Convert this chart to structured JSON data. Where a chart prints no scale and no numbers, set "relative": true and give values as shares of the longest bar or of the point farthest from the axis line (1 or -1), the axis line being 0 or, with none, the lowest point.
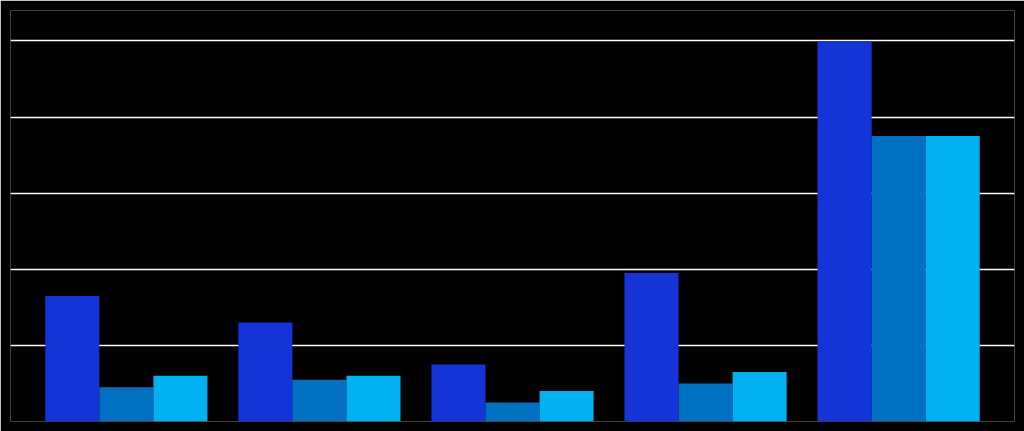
{
  "chart_data": {
    "type": "bar",
    "relative": true,
    "grid": "y",
    "categories": [
      null,
      null,
      null,
      null,
      null
    ],
    "series": [
      {
        "color": "#1434d8",
        "values": [
          0.33,
          0.26,
          0.15,
          0.39,
          1
        ]
      },
      {
        "color": "#0070c0",
        "values": [
          0.09,
          0.11,
          0.05,
          0.1,
          0.75
        ]
      },
      {
        "color": "#00b0f0",
        "values": [
          0.12,
          0.12,
          0.08,
          0.13,
          0.75
        ]
      }
    ]
  }
}
